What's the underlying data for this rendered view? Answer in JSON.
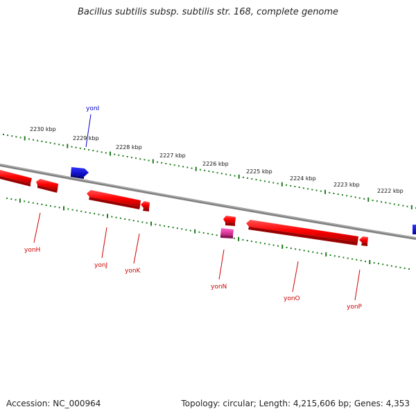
{
  "title": "Bacillus subtilis subsp. subtilis str. 168, complete genome",
  "footer": {
    "accession": "Accession: NC_000964",
    "topology": "Topology: circular; Length: 4,215,606 bp; Genes: 4,353"
  },
  "colors": {
    "forward_gene": "#0000dd",
    "reverse_gene": "#ff0000",
    "rna_gene": "#e0338f",
    "backbone": "#808080",
    "ticks": "#1a7a1a",
    "forward_label": "#0000cc",
    "reverse_label": "#cc0000"
  },
  "scale_labels": [
    "2230 kbp",
    "2229 kbp",
    "2228 kbp",
    "2227 kbp",
    "2226 kbp",
    "2225 kbp",
    "2224 kbp",
    "2223 kbp",
    "2222 kbp"
  ],
  "genes": [
    {
      "name": "yonI",
      "strand": "forward",
      "labeled": true
    },
    {
      "name": "yonH",
      "strand": "reverse",
      "labeled": true
    },
    {
      "name": "yonJ",
      "strand": "reverse",
      "labeled": true
    },
    {
      "name": "yonK",
      "strand": "reverse",
      "labeled": true
    },
    {
      "name": "yonN",
      "strand": "reverse",
      "labeled": true
    },
    {
      "name": "yonO",
      "strand": "reverse",
      "labeled": true
    },
    {
      "name": "yonP",
      "strand": "reverse",
      "labeled": true
    }
  ]
}
